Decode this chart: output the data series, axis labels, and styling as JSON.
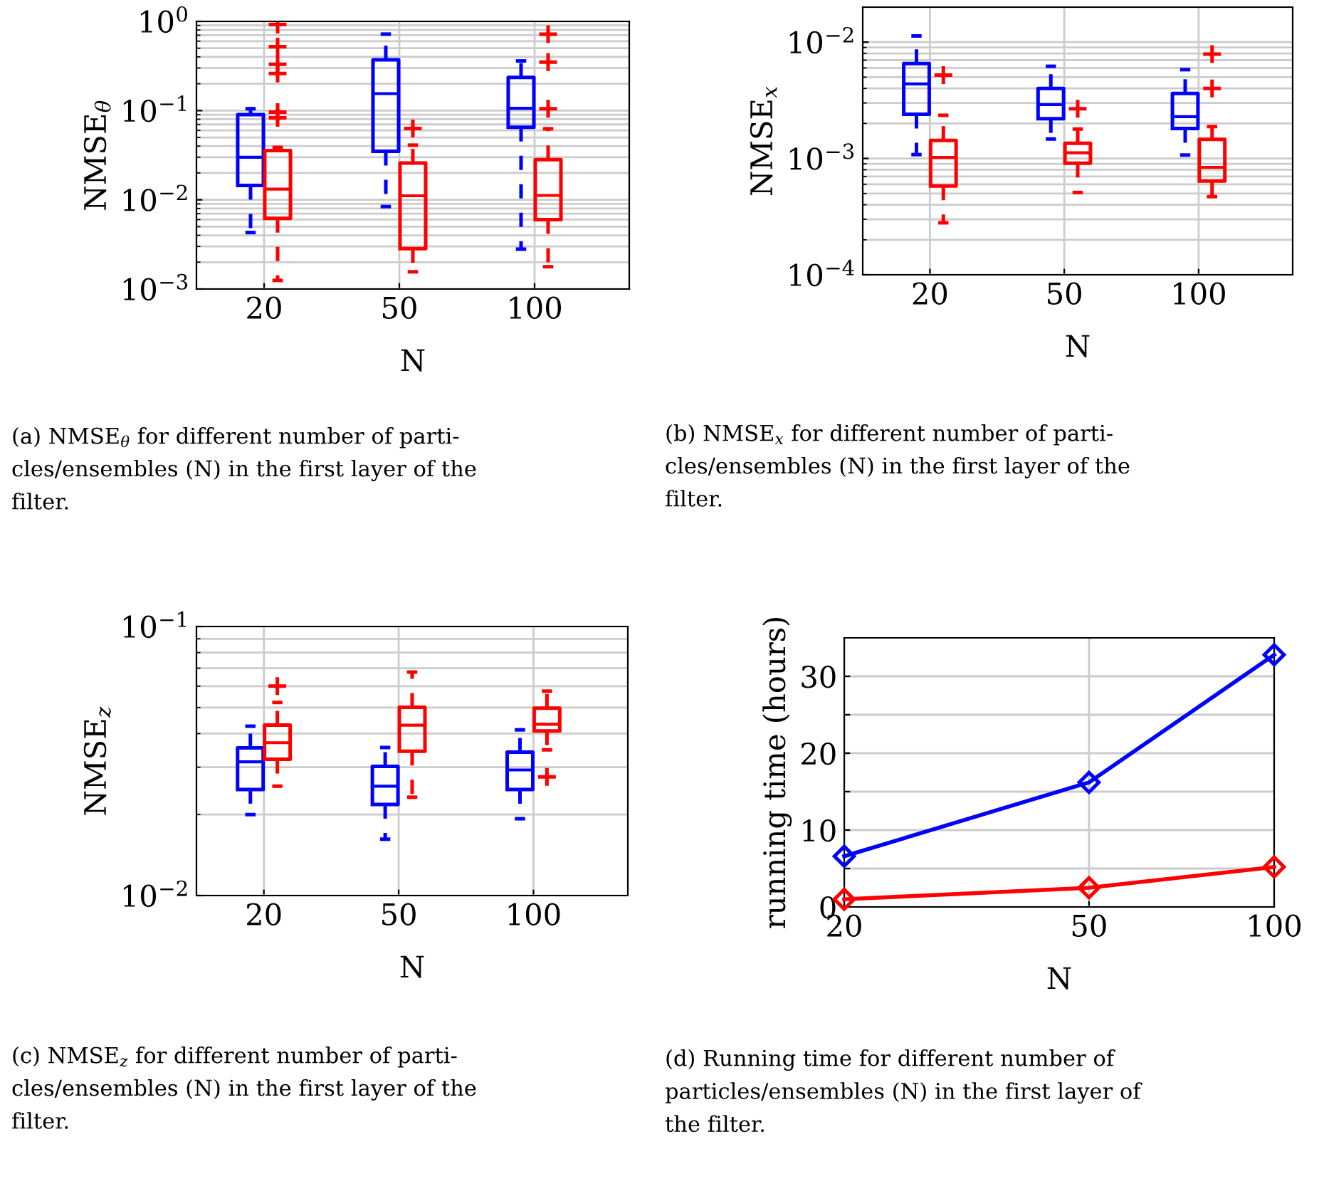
{
  "chart_data": [
    {
      "type": "box",
      "categories": [
        "20",
        "50",
        "100"
      ],
      "xlabel": "N",
      "ylabel": "NMSE$_{θ}$",
      "log": "y",
      "ylim": [
        0.001,
        1
      ],
      "yticks": [
        {
          "value": 0.001,
          "label": "10$^{−3}$"
        },
        {
          "value": 0.01,
          "label": "10$^{−2}$"
        },
        {
          "value": 0.1,
          "label": "10$^{−1}$"
        },
        {
          "value": 1,
          "label": "10$^{0}$"
        }
      ],
      "grid": true,
      "series": [
        {
          "color": "#0000ff",
          "boxes": [
            {
              "low": 0.0043,
              "q1": 0.0145,
              "median": 0.03,
              "q3": 0.09,
              "high": 0.105
            },
            {
              "low": 0.0084,
              "q1": 0.035,
              "median": 0.155,
              "q3": 0.37,
              "high": 0.72
            },
            {
              "low": 0.0028,
              "q1": 0.065,
              "median": 0.106,
              "q3": 0.235,
              "high": 0.36
            }
          ]
        },
        {
          "color": "#ff0000",
          "boxes": [
            {
              "low": 0.00125,
              "q1": 0.0062,
              "median": 0.0132,
              "q3": 0.0356,
              "high": 0.0387,
              "outliers": [
                0.92,
                0.52,
                0.33,
                0.26,
                0.096,
                0.083
              ]
            },
            {
              "low": 0.00156,
              "q1": 0.00284,
              "median": 0.0111,
              "q3": 0.0258,
              "high": 0.041,
              "outliers": [
                0.063
              ]
            },
            {
              "low": 0.00178,
              "q1": 0.006,
              "median": 0.0112,
              "q3": 0.0282,
              "high": 0.0625,
              "outliers": [
                0.105,
                0.35,
                0.72
              ]
            }
          ]
        }
      ],
      "annotations": [
        "(a) NMSE$_{θ}$ for different number of parti-\ncles/ensembles (N) in the first layer of the\nfilter."
      ]
    },
    {
      "type": "box",
      "categories": [
        "20",
        "50",
        "100"
      ],
      "xlabel": "N",
      "ylabel": "NMSE$_{x}$",
      "log": "y",
      "ylim": [
        0.0001,
        0.02
      ],
      "yticks": [
        {
          "value": 0.0001,
          "label": "10$^{−4}$"
        },
        {
          "value": 0.001,
          "label": "10$^{−3}$"
        },
        {
          "value": 0.01,
          "label": "10$^{−2}$"
        }
      ],
      "grid": true,
      "series": [
        {
          "color": "#0000ff",
          "boxes": [
            {
              "low": 0.00108,
              "q1": 0.0024,
              "median": 0.00437,
              "q3": 0.00655,
              "high": 0.0113
            },
            {
              "low": 0.00147,
              "q1": 0.0022,
              "median": 0.0029,
              "q3": 0.004,
              "high": 0.0062
            },
            {
              "low": 0.00107,
              "q1": 0.00181,
              "median": 0.00229,
              "q3": 0.00362,
              "high": 0.0058
            }
          ]
        },
        {
          "color": "#ff0000",
          "boxes": [
            {
              "low": 0.00028,
              "q1": 0.00058,
              "median": 0.00102,
              "q3": 0.00143,
              "high": 0.00235,
              "outliers": [
                0.0052
              ]
            },
            {
              "low": 0.00051,
              "q1": 0.00091,
              "median": 0.00112,
              "q3": 0.00135,
              "high": 0.00179,
              "outliers": [
                0.00268
              ]
            },
            {
              "low": 0.00047,
              "q1": 0.00064,
              "median": 0.00084,
              "q3": 0.00146,
              "high": 0.00188,
              "outliers": [
                0.0079,
                0.004
              ]
            }
          ]
        }
      ],
      "annotations": [
        "(b) NMSE$_{x}$ for different number of parti-\ncles/ensembles (N) in the first layer of the\nfilter."
      ]
    },
    {
      "type": "box",
      "categories": [
        "20",
        "50",
        "100"
      ],
      "xlabel": "N",
      "ylabel": "NMSE$_{z}$",
      "log": "y",
      "ylim": [
        0.01,
        0.1
      ],
      "yticks": [
        {
          "value": 0.01,
          "label": "10$^{−2}$"
        },
        {
          "value": 0.1,
          "label": "10$^{−1}$"
        }
      ],
      "grid": true,
      "series": [
        {
          "color": "#0000ff",
          "boxes": [
            {
              "low": 0.02,
              "q1": 0.0248,
              "median": 0.0314,
              "q3": 0.0354,
              "high": 0.0426
            },
            {
              "low": 0.0162,
              "q1": 0.0218,
              "median": 0.0255,
              "q3": 0.0302,
              "high": 0.0355
            },
            {
              "low": 0.0193,
              "q1": 0.0248,
              "median": 0.0293,
              "q3": 0.0341,
              "high": 0.0413
            }
          ]
        },
        {
          "color": "#ff0000",
          "boxes": [
            {
              "low": 0.0255,
              "q1": 0.0321,
              "median": 0.037,
              "q3": 0.043,
              "high": 0.0522,
              "outliers": [
                0.06
              ]
            },
            {
              "low": 0.0232,
              "q1": 0.0344,
              "median": 0.043,
              "q3": 0.0501,
              "high": 0.0677
            },
            {
              "low": 0.0348,
              "q1": 0.0409,
              "median": 0.0433,
              "q3": 0.0497,
              "high": 0.0575,
              "outliers": [
                0.0276
              ]
            }
          ]
        }
      ],
      "annotations": [
        "(c) NMSE$_{z}$ for different number of parti-\ncles/ensembles (N) in the first layer of the\nfilter."
      ]
    },
    {
      "type": "line",
      "x": [
        20,
        50,
        100
      ],
      "xlabel": "N",
      "ylabel": "running time (hours)",
      "log": "x",
      "xlim": [
        20,
        100
      ],
      "xticks": [
        20,
        50,
        100
      ],
      "ylim": [
        0,
        35
      ],
      "yticks": [
        0,
        10,
        20,
        30,
        {
          "value": 5,
          "label": null
        },
        {
          "value": 15,
          "label": null
        },
        {
          "value": 25,
          "label": null
        }
      ],
      "grid": true,
      "marker": "diamond",
      "series": [
        {
          "color": "#0000ff",
          "values": [
            6.6,
            16.2,
            32.8
          ]
        },
        {
          "color": "#ff0000",
          "values": [
            1.0,
            2.5,
            5.2
          ]
        }
      ],
      "annotations": [
        "(d) Running time for different number of\nparticles/ensembles (N) in the first layer of\nthe filter."
      ]
    }
  ]
}
